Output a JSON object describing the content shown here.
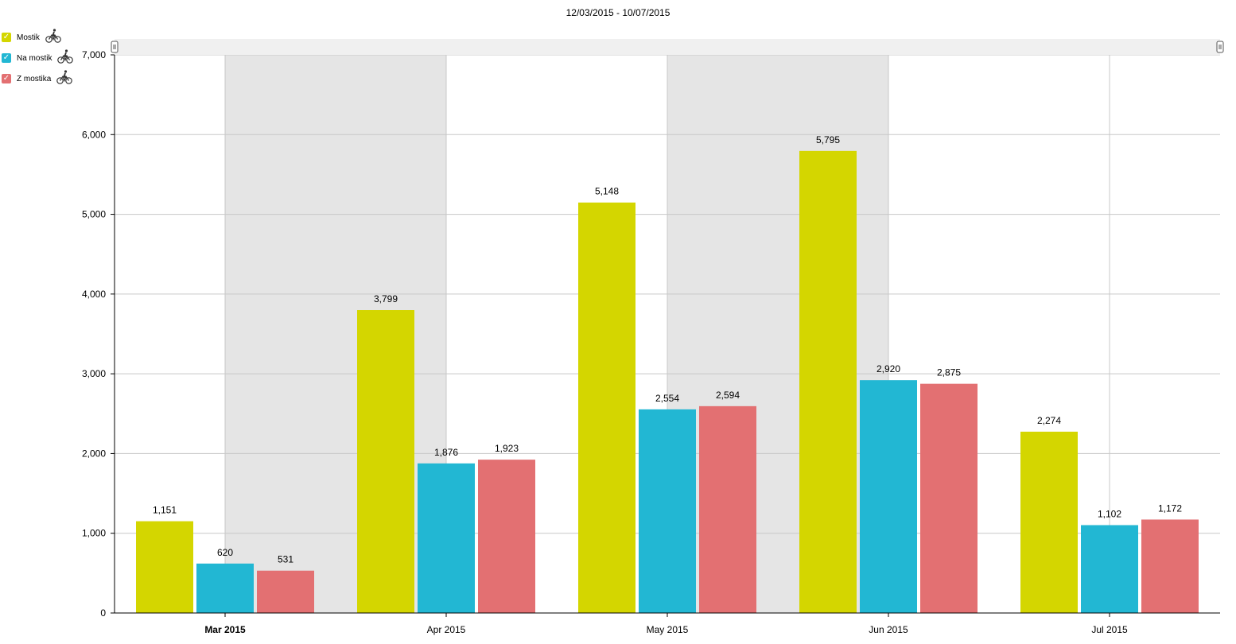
{
  "header": {
    "date_range": "12/03/2015 - 10/07/2015"
  },
  "legend": {
    "items": [
      {
        "label": "Mostik",
        "color": "#d4d600",
        "icon": "bicycle-icon"
      },
      {
        "label": "Na mostik",
        "color": "#22b7d3",
        "icon": "bicycle-icon"
      },
      {
        "label": "Z mostika",
        "color": "#e37072",
        "icon": "bicycle-icon"
      }
    ]
  },
  "chart_data": {
    "type": "bar",
    "categories": [
      "Mar 2015",
      "Apr 2015",
      "May 2015",
      "Jun 2015",
      "Jul 2015"
    ],
    "series": [
      {
        "name": "Mostik",
        "color": "#d4d600",
        "values": [
          1151,
          3799,
          5148,
          5795,
          2274
        ]
      },
      {
        "name": "Na mostik",
        "color": "#22b7d3",
        "values": [
          620,
          1876,
          2554,
          2920,
          1102
        ]
      },
      {
        "name": "Z mostika",
        "color": "#e37072",
        "values": [
          531,
          1923,
          2594,
          2875,
          1172
        ]
      }
    ],
    "ylim": [
      0,
      7000
    ],
    "yticks": [
      "0",
      "1,000",
      "2,000",
      "3,000",
      "4,000",
      "5,000",
      "6,000",
      "7,000"
    ],
    "data_labels": [
      [
        "1,151",
        "3,799",
        "5,148",
        "5,795",
        "2,274"
      ],
      [
        "620",
        "1,876",
        "2,554",
        "2,920",
        "1,102"
      ],
      [
        "531",
        "1,923",
        "2,594",
        "2,875",
        "1,172"
      ]
    ],
    "grid": true,
    "alternating_band_color": "#e5e5e5",
    "legend_position": "top-left",
    "scrollbar": true
  }
}
